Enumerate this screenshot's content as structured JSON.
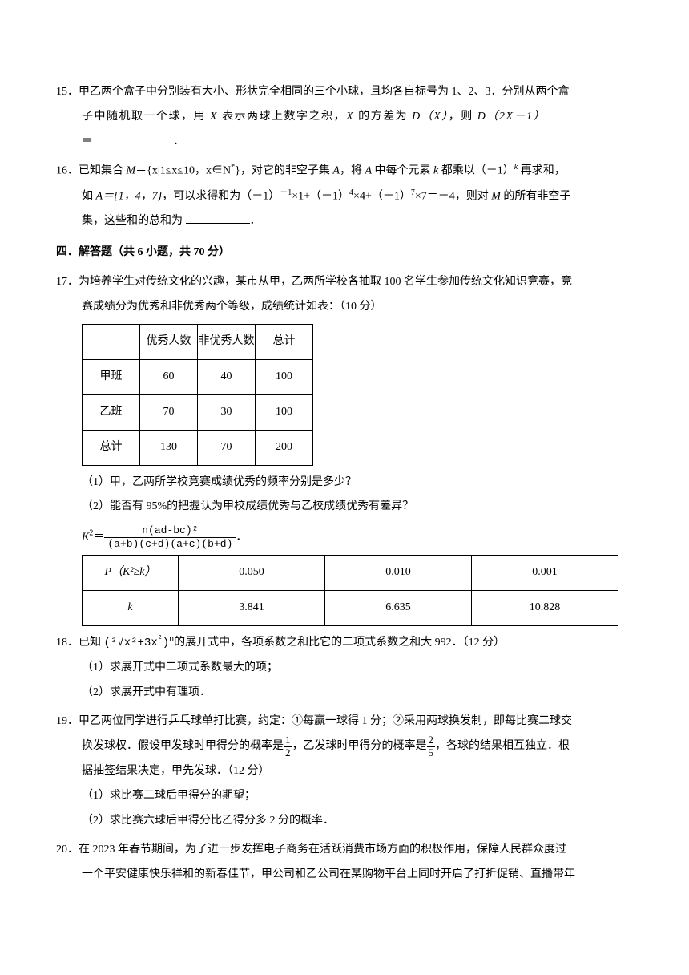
{
  "q15": {
    "num": "15．",
    "text_a": "甲乙两个盒子中分别装有大小、形状完全相同的三个小球，且均各自标号为 1、2、3．分别从两个盒",
    "text_b": "子中随机取一个球，用 ",
    "X": "X",
    "text_c": " 表示两球上数字之积，",
    "text_d": " 的方差为 ",
    "DX": "D（X）",
    "text_e": "，则 ",
    "D2X": "D（2X－1）",
    "text_f": "＝"
  },
  "q16": {
    "num": "16．",
    "text_a": "已知集合 ",
    "M": "M",
    "eq": "＝{x|1≤x≤10，x∈N",
    "sup": "*",
    "text_b": "}，对它的非空子集 ",
    "A": "A",
    "text_c": "，将 ",
    "text_d": " 中每个元素 ",
    "k": "k",
    "text_e": " 都乘以（－1）",
    "text_f": " 再求和，",
    "text_g": "如 ",
    "Aset": "A＝{1，4，7}",
    "text_h": "，可以求得和为（－1）",
    "exp1": "－1",
    "text_i": "×1+（－1）",
    "exp4": "4",
    "text_j": "×4+（－1）",
    "exp7": "7",
    "text_k": "×7＝－4，则对 ",
    "text_l": " 的所有非空子",
    "text_m": "集，这些和的总和为 "
  },
  "section4": "四．解答题（共 6 小题，共 70 分）",
  "q17": {
    "num": "17．",
    "text_a": "为培养学生对传统文化的兴趣，某市从甲，乙两所学校各抽取 100 名学生参加传统文化知识竞赛，竞",
    "text_b": "赛成绩分为优秀和非优秀两个等级，成绩统计如表：（10 分）",
    "table": {
      "headers": [
        "",
        "优秀人数",
        "非优秀人数",
        "总计"
      ],
      "rows": [
        [
          "甲班",
          "60",
          "40",
          "100"
        ],
        [
          "乙班",
          "70",
          "30",
          "100"
        ],
        [
          "总计",
          "130",
          "70",
          "200"
        ]
      ]
    },
    "sub1": "（1）甲，乙两所学校竞赛成绩优秀的频率分别是多少？",
    "sub2": "（2）能否有 95%的把握认为甲校成绩优秀与乙校成绩优秀有差异？",
    "k2_label": "K",
    "k2_sup": "2",
    "k2_eq": "＝",
    "k2_num": "n(ad-bc)²",
    "k2_den": "(a+b)(c+d)(a+c)(b+d)",
    "k2_tail": "．",
    "ktable": {
      "r0": [
        "P（K²≥k）",
        "0.050",
        "0.010",
        "0.001"
      ],
      "r1": [
        "k",
        "3.841",
        "6.635",
        "10.828"
      ]
    }
  },
  "q18": {
    "num": "18．",
    "text_a": "已知 ",
    "expr_open": "(",
    "expr_rad": "³√x²",
    "expr_mid": "+3x",
    "expr_sup2": "²",
    "expr_close": ")",
    "expr_n": "n",
    "text_b": "的展开式中，各项系数之和比它的二项式系数之和大 992．（12 分）",
    "sub1": "（1）求展开式中二项式系数最大的项；",
    "sub2": "（2）求展开式中有理项．"
  },
  "q19": {
    "num": "19．",
    "text_a": "甲乙两位同学进行乒乓球单打比赛，约定：①每赢一球得 1 分；②采用两球换发制，即每比赛二球交",
    "text_b": "换发球权．假设甲发球时甲得分的概率是",
    "half_n": "1",
    "half_d": "2",
    "text_c": "，乙发球时甲得分的概率是",
    "tf_n": "2",
    "tf_d": "5",
    "text_d": "，各球的结果相互独立．根",
    "text_e": "据抽签结果决定，甲先发球．（12 分）",
    "sub1": "（1）求比赛二球后甲得分的期望；",
    "sub2": "（2）求比赛六球后甲得分比乙得分多 2 分的概率．"
  },
  "q20": {
    "num": "20．",
    "text_a": "在 2023 年春节期间，为了进一步发挥电子商务在活跃消费市场方面的积极作用，保障人民群众度过",
    "text_b": "一个平安健康快乐祥和的新春佳节，甲公司和乙公司在某购物平台上同时开启了打折促销、直播带年"
  }
}
